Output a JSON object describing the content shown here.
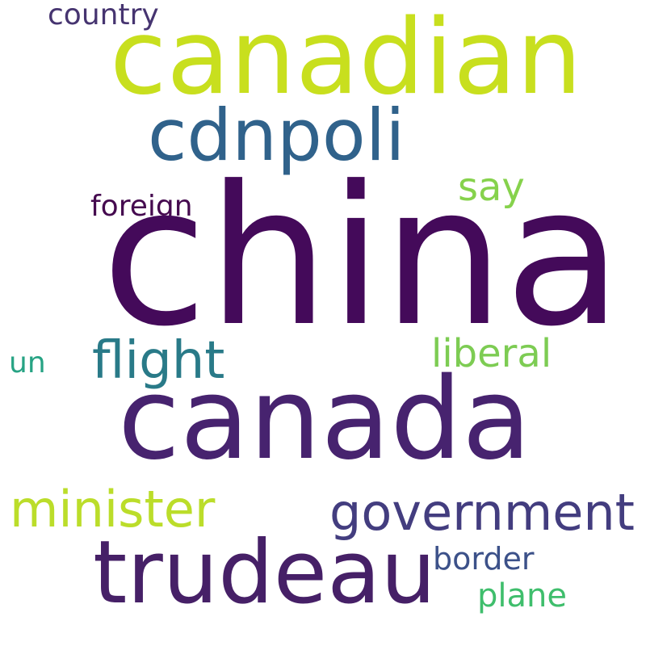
{
  "word_cloud": {
    "background": "#ffffff",
    "words": {
      "china": {
        "text": "china",
        "color": "#440a5a"
      },
      "canadian": {
        "text": "canadian",
        "color": "#c8df1e"
      },
      "canada": {
        "text": "canada",
        "color": "#47236f"
      },
      "cdnpoli": {
        "text": "cdnpoli",
        "color": "#30628b"
      },
      "trudeau": {
        "text": "trudeau",
        "color": "#462067"
      },
      "government": {
        "text": "government",
        "color": "#433d7f"
      },
      "minister": {
        "text": "minister",
        "color": "#bbdd2a"
      },
      "flight": {
        "text": "flight",
        "color": "#297a88"
      },
      "liberal": {
        "text": "liberal",
        "color": "#7dcc53"
      },
      "say": {
        "text": "say",
        "color": "#86d24c"
      },
      "foreign": {
        "text": "foreign",
        "color": "#450a4f"
      },
      "country": {
        "text": "country",
        "color": "#463470"
      },
      "border": {
        "text": "border",
        "color": "#3c5189"
      },
      "plane": {
        "text": "plane",
        "color": "#3fbe6c"
      },
      "un": {
        "text": "un",
        "color": "#27a384"
      }
    }
  }
}
